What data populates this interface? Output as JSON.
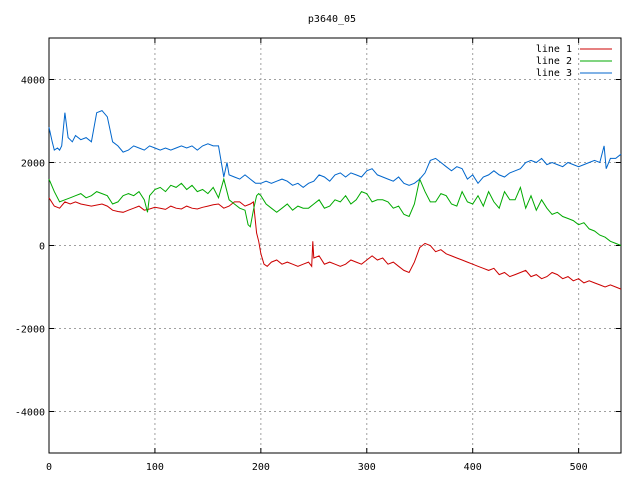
{
  "chart_data": {
    "type": "line",
    "title": "p3640_05",
    "xlabel": "",
    "ylabel": "",
    "xlim": [
      0,
      540
    ],
    "ylim": [
      -5000,
      5000
    ],
    "x_ticks": [
      0,
      100,
      200,
      300,
      400,
      500
    ],
    "y_ticks": [
      -4000,
      -2000,
      0,
      2000,
      4000
    ],
    "x_tick_labels": [
      "0",
      "100",
      "200",
      "300",
      "400",
      "500"
    ],
    "y_tick_labels": [
      "-4000",
      "-2000",
      "0",
      "2000",
      "4000"
    ],
    "grid": true,
    "legend_position": "top-right",
    "series": [
      {
        "name": "line 1",
        "color": "#cc0000",
        "x": [
          0,
          5,
          10,
          15,
          20,
          25,
          30,
          40,
          50,
          55,
          60,
          65,
          70,
          75,
          80,
          85,
          90,
          95,
          100,
          105,
          110,
          115,
          120,
          125,
          130,
          135,
          140,
          145,
          150,
          155,
          160,
          165,
          170,
          175,
          180,
          185,
          190,
          193,
          196,
          198,
          200,
          203,
          206,
          210,
          215,
          220,
          225,
          230,
          235,
          240,
          245,
          248,
          249,
          250,
          255,
          260,
          265,
          270,
          275,
          280,
          285,
          290,
          295,
          300,
          305,
          310,
          315,
          320,
          325,
          330,
          335,
          340,
          345,
          350,
          355,
          360,
          365,
          370,
          375,
          380,
          385,
          390,
          395,
          400,
          405,
          410,
          415,
          420,
          425,
          430,
          435,
          440,
          445,
          450,
          455,
          460,
          465,
          470,
          475,
          480,
          485,
          490,
          495,
          500,
          505,
          510,
          515,
          520,
          525,
          530,
          535,
          540
        ],
        "values": [
          1150,
          950,
          900,
          1050,
          1000,
          1050,
          1000,
          950,
          1000,
          950,
          850,
          820,
          800,
          850,
          900,
          950,
          850,
          880,
          920,
          900,
          870,
          950,
          900,
          880,
          950,
          900,
          880,
          920,
          950,
          980,
          1000,
          900,
          950,
          1050,
          1050,
          950,
          1000,
          1050,
          300,
          100,
          -200,
          -450,
          -500,
          -400,
          -350,
          -450,
          -400,
          -450,
          -500,
          -450,
          -400,
          -500,
          100,
          -300,
          -250,
          -450,
          -400,
          -450,
          -500,
          -450,
          -350,
          -400,
          -450,
          -350,
          -250,
          -350,
          -300,
          -450,
          -400,
          -500,
          -600,
          -650,
          -400,
          -50,
          50,
          0,
          -150,
          -100,
          -200,
          -250,
          -300,
          -350,
          -400,
          -450,
          -500,
          -550,
          -600,
          -550,
          -700,
          -650,
          -750,
          -700,
          -650,
          -600,
          -750,
          -700,
          -800,
          -750,
          -650,
          -700,
          -800,
          -750,
          -850,
          -800,
          -900,
          -850,
          -900,
          -950,
          -1000,
          -950,
          -1000,
          -1050
        ]
      },
      {
        "name": "line 2",
        "color": "#00aa00",
        "x": [
          0,
          5,
          10,
          15,
          20,
          25,
          30,
          35,
          40,
          45,
          50,
          55,
          60,
          65,
          70,
          75,
          80,
          85,
          90,
          93,
          95,
          100,
          105,
          110,
          115,
          120,
          125,
          130,
          135,
          140,
          145,
          150,
          155,
          160,
          165,
          170,
          175,
          180,
          185,
          188,
          190,
          193,
          196,
          198,
          200,
          205,
          210,
          215,
          220,
          225,
          230,
          235,
          240,
          245,
          250,
          255,
          260,
          265,
          270,
          275,
          280,
          285,
          290,
          295,
          300,
          305,
          310,
          315,
          320,
          325,
          330,
          335,
          340,
          345,
          350,
          355,
          360,
          365,
          370,
          375,
          380,
          385,
          390,
          395,
          400,
          405,
          410,
          415,
          420,
          425,
          430,
          435,
          440,
          445,
          450,
          455,
          460,
          465,
          470,
          475,
          480,
          485,
          490,
          495,
          500,
          505,
          510,
          515,
          520,
          525,
          530,
          535,
          540
        ],
        "values": [
          1600,
          1300,
          1050,
          1100,
          1150,
          1200,
          1250,
          1150,
          1200,
          1300,
          1250,
          1200,
          1000,
          1050,
          1200,
          1250,
          1200,
          1300,
          1100,
          800,
          1200,
          1350,
          1400,
          1300,
          1450,
          1400,
          1500,
          1350,
          1450,
          1300,
          1350,
          1250,
          1400,
          1150,
          1600,
          1100,
          1000,
          900,
          850,
          500,
          450,
          850,
          1200,
          1250,
          1200,
          1000,
          900,
          800,
          900,
          1000,
          850,
          950,
          900,
          900,
          1000,
          1100,
          900,
          950,
          1100,
          1050,
          1200,
          1000,
          1100,
          1300,
          1250,
          1050,
          1100,
          1100,
          1050,
          900,
          950,
          750,
          700,
          1000,
          1600,
          1300,
          1050,
          1050,
          1250,
          1200,
          1000,
          950,
          1300,
          1050,
          1000,
          1200,
          950,
          1300,
          1050,
          900,
          1300,
          1100,
          1100,
          1400,
          900,
          1200,
          850,
          1100,
          900,
          750,
          800,
          700,
          650,
          600,
          500,
          550,
          400,
          350,
          250,
          200,
          100,
          50,
          0
        ]
      },
      {
        "name": "line 3",
        "color": "#0066cc",
        "x": [
          0,
          3,
          5,
          8,
          10,
          12,
          15,
          18,
          20,
          22,
          25,
          30,
          35,
          40,
          45,
          50,
          55,
          60,
          65,
          70,
          75,
          80,
          85,
          90,
          95,
          100,
          105,
          110,
          115,
          120,
          125,
          130,
          135,
          140,
          145,
          150,
          155,
          160,
          165,
          168,
          170,
          175,
          180,
          185,
          190,
          195,
          200,
          205,
          210,
          215,
          220,
          225,
          230,
          235,
          240,
          245,
          250,
          255,
          260,
          265,
          270,
          275,
          280,
          285,
          290,
          295,
          300,
          305,
          310,
          315,
          320,
          325,
          330,
          335,
          340,
          345,
          350,
          355,
          360,
          365,
          370,
          375,
          380,
          385,
          390,
          395,
          400,
          405,
          410,
          415,
          420,
          425,
          430,
          435,
          440,
          445,
          450,
          455,
          460,
          465,
          470,
          475,
          480,
          485,
          490,
          495,
          500,
          505,
          510,
          515,
          520,
          524,
          526,
          530,
          535,
          540
        ],
        "values": [
          2850,
          2500,
          2300,
          2350,
          2300,
          2400,
          3200,
          2600,
          2550,
          2500,
          2650,
          2550,
          2600,
          2500,
          3200,
          3250,
          3100,
          2500,
          2400,
          2250,
          2300,
          2400,
          2350,
          2300,
          2400,
          2350,
          2300,
          2350,
          2300,
          2350,
          2400,
          2350,
          2400,
          2300,
          2400,
          2450,
          2400,
          2400,
          1650,
          2000,
          1700,
          1650,
          1600,
          1700,
          1600,
          1500,
          1500,
          1550,
          1500,
          1550,
          1600,
          1550,
          1450,
          1500,
          1400,
          1500,
          1550,
          1700,
          1650,
          1550,
          1700,
          1750,
          1650,
          1750,
          1700,
          1650,
          1800,
          1850,
          1700,
          1650,
          1600,
          1550,
          1650,
          1500,
          1450,
          1500,
          1600,
          1750,
          2050,
          2100,
          2000,
          1900,
          1800,
          1900,
          1850,
          1600,
          1700,
          1500,
          1650,
          1700,
          1800,
          1700,
          1650,
          1750,
          1800,
          1850,
          2000,
          2050,
          2000,
          2100,
          1950,
          2000,
          1950,
          1900,
          2000,
          1950,
          1900,
          1950,
          2000,
          2050,
          2000,
          2400,
          1850,
          2100,
          2100,
          2200
        ]
      }
    ]
  }
}
